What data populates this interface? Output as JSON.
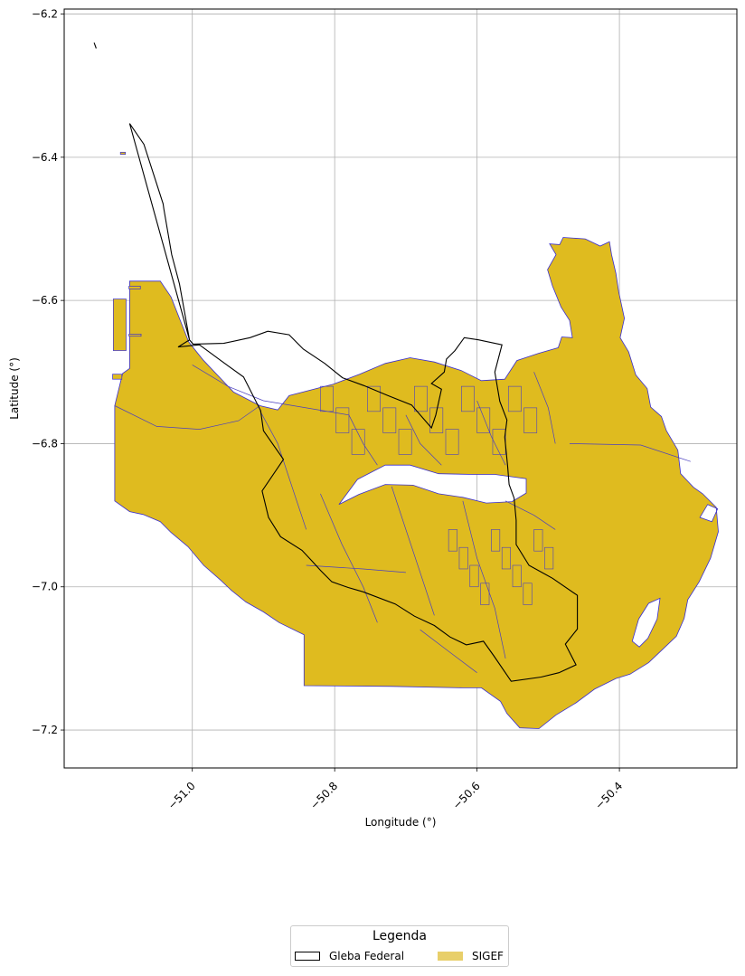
{
  "chart_data": {
    "type": "map",
    "xlabel": "Longitude (°)",
    "ylabel": "Latitude (°)",
    "xlim": [
      -51.18,
      -50.235
    ],
    "ylim": [
      -7.253,
      -6.193
    ],
    "xticks": [
      -51.0,
      -50.8,
      -50.6,
      -50.4
    ],
    "xtick_labels": [
      "−51.0",
      "−50.8",
      "−50.6",
      "−50.4"
    ],
    "yticks": [
      -6.2,
      -6.4,
      -6.6,
      -6.8,
      -7.0,
      -7.2
    ],
    "ytick_labels": [
      "−6.2",
      "−6.4",
      "−6.6",
      "−6.8",
      "−7.0",
      "−7.2"
    ],
    "grid": true,
    "legend": {
      "title": "Legenda",
      "placement": "bottom-center",
      "entries": [
        {
          "name": "Gleba Federal",
          "style": "outline",
          "color": "#000000"
        },
        {
          "name": "SIGEF",
          "style": "fill",
          "color": "#dfbb1f"
        }
      ]
    },
    "layers": {
      "sigef": {
        "fill": "#dfbb1f",
        "edge": "#3a2fcf",
        "outline": [
          [
            -51.109,
            -6.747
          ],
          [
            -51.098,
            -6.702
          ],
          [
            -51.088,
            -6.695
          ],
          [
            -51.088,
            -6.573
          ],
          [
            -51.045,
            -6.573
          ],
          [
            -51.03,
            -6.595
          ],
          [
            -51.005,
            -6.658
          ],
          [
            -50.985,
            -6.683
          ],
          [
            -50.942,
            -6.728
          ],
          [
            -50.905,
            -6.747
          ],
          [
            -50.88,
            -6.753
          ],
          [
            -50.864,
            -6.733
          ],
          [
            -50.829,
            -6.724
          ],
          [
            -50.802,
            -6.717
          ],
          [
            -50.765,
            -6.703
          ],
          [
            -50.729,
            -6.688
          ],
          [
            -50.694,
            -6.68
          ],
          [
            -50.66,
            -6.686
          ],
          [
            -50.622,
            -6.698
          ],
          [
            -50.594,
            -6.712
          ],
          [
            -50.561,
            -6.71
          ],
          [
            -50.544,
            -6.684
          ],
          [
            -50.514,
            -6.674
          ],
          [
            -50.486,
            -6.666
          ],
          [
            -50.481,
            -6.651
          ],
          [
            -50.466,
            -6.652
          ],
          [
            -50.47,
            -6.628
          ],
          [
            -50.482,
            -6.609
          ],
          [
            -50.494,
            -6.58
          ],
          [
            -50.501,
            -6.557
          ],
          [
            -50.489,
            -6.536
          ],
          [
            -50.498,
            -6.521
          ],
          [
            -50.484,
            -6.522
          ],
          [
            -50.479,
            -6.512
          ],
          [
            -50.448,
            -6.514
          ],
          [
            -50.427,
            -6.524
          ],
          [
            -50.414,
            -6.518
          ],
          [
            -50.411,
            -6.536
          ],
          [
            -50.405,
            -6.562
          ],
          [
            -50.401,
            -6.588
          ],
          [
            -50.393,
            -6.625
          ],
          [
            -50.399,
            -6.652
          ],
          [
            -50.387,
            -6.672
          ],
          [
            -50.377,
            -6.704
          ],
          [
            -50.361,
            -6.723
          ],
          [
            -50.356,
            -6.749
          ],
          [
            -50.341,
            -6.762
          ],
          [
            -50.334,
            -6.782
          ],
          [
            -50.318,
            -6.809
          ],
          [
            -50.314,
            -6.842
          ],
          [
            -50.296,
            -6.861
          ],
          [
            -50.283,
            -6.87
          ],
          [
            -50.264,
            -6.889
          ],
          [
            -50.261,
            -6.923
          ],
          [
            -50.272,
            -6.96
          ],
          [
            -50.288,
            -6.993
          ],
          [
            -50.304,
            -7.018
          ],
          [
            -50.309,
            -7.044
          ],
          [
            -50.32,
            -7.069
          ],
          [
            -50.341,
            -7.089
          ],
          [
            -50.359,
            -7.106
          ],
          [
            -50.385,
            -7.122
          ],
          [
            -50.405,
            -7.128
          ],
          [
            -50.435,
            -7.143
          ],
          [
            -50.461,
            -7.162
          ],
          [
            -50.489,
            -7.179
          ],
          [
            -50.513,
            -7.198
          ],
          [
            -50.54,
            -7.197
          ],
          [
            -50.558,
            -7.177
          ],
          [
            -50.567,
            -7.16
          ],
          [
            -50.594,
            -7.141
          ],
          [
            -50.62,
            -7.141
          ],
          [
            -50.72,
            -7.139
          ],
          [
            -50.843,
            -7.138
          ],
          [
            -50.843,
            -7.067
          ],
          [
            -50.878,
            -7.05
          ],
          [
            -50.9,
            -7.035
          ],
          [
            -50.925,
            -7.021
          ],
          [
            -50.945,
            -7.005
          ],
          [
            -50.961,
            -6.99
          ],
          [
            -50.984,
            -6.97
          ],
          [
            -51.006,
            -6.944
          ],
          [
            -51.03,
            -6.924
          ],
          [
            -51.045,
            -6.909
          ],
          [
            -51.069,
            -6.899
          ],
          [
            -51.088,
            -6.895
          ],
          [
            -51.109,
            -6.88
          ]
        ],
        "hole_outline": [
          [
            -50.794,
            -6.885
          ],
          [
            -50.768,
            -6.85
          ],
          [
            -50.729,
            -6.83
          ],
          [
            -50.694,
            -6.83
          ],
          [
            -50.654,
            -6.842
          ],
          [
            -50.606,
            -6.843
          ],
          [
            -50.575,
            -6.843
          ],
          [
            -50.531,
            -6.849
          ],
          [
            -50.531,
            -6.869
          ],
          [
            -50.551,
            -6.881
          ],
          [
            -50.587,
            -6.883
          ],
          [
            -50.62,
            -6.875
          ],
          [
            -50.654,
            -6.87
          ],
          [
            -50.69,
            -6.858
          ],
          [
            -50.729,
            -6.857
          ],
          [
            -50.766,
            -6.871
          ]
        ],
        "hole_east": [
          [
            -50.276,
            -6.885
          ],
          [
            -50.262,
            -6.891
          ],
          [
            -50.27,
            -6.909
          ],
          [
            -50.287,
            -6.903
          ]
        ],
        "hole_east2": [
          [
            -50.373,
            -7.045
          ],
          [
            -50.359,
            -7.023
          ],
          [
            -50.343,
            -7.016
          ],
          [
            -50.347,
            -7.045
          ],
          [
            -50.36,
            -7.072
          ],
          [
            -50.372,
            -7.084
          ],
          [
            -50.382,
            -7.076
          ]
        ]
      },
      "gleba": {
        "edge": "#000000",
        "outline": [
          [
            -51.088,
            -6.353
          ],
          [
            -51.068,
            -6.382
          ],
          [
            -51.041,
            -6.465
          ],
          [
            -51.04,
            -6.472
          ],
          [
            -51.029,
            -6.536
          ],
          [
            -51.018,
            -6.577
          ],
          [
            -51.01,
            -6.621
          ],
          [
            -51.004,
            -6.655
          ],
          [
            -51.02,
            -6.665
          ],
          [
            -50.99,
            -6.662
          ],
          [
            -50.96,
            -6.684
          ],
          [
            -50.928,
            -6.707
          ],
          [
            -50.904,
            -6.754
          ],
          [
            -50.9,
            -6.782
          ],
          [
            -50.872,
            -6.822
          ],
          [
            -50.902,
            -6.866
          ],
          [
            -50.893,
            -6.903
          ],
          [
            -50.876,
            -6.93
          ],
          [
            -50.846,
            -6.949
          ],
          [
            -50.831,
            -6.965
          ],
          [
            -50.82,
            -6.977
          ],
          [
            -50.804,
            -6.993
          ],
          [
            -50.781,
            -7.001
          ],
          [
            -50.76,
            -7.007
          ],
          [
            -50.715,
            -7.024
          ],
          [
            -50.688,
            -7.041
          ],
          [
            -50.66,
            -7.054
          ],
          [
            -50.638,
            -7.07
          ],
          [
            -50.615,
            -7.081
          ],
          [
            -50.591,
            -7.076
          ],
          [
            -50.576,
            -7.097
          ],
          [
            -50.552,
            -7.132
          ],
          [
            -50.51,
            -7.126
          ],
          [
            -50.485,
            -7.12
          ],
          [
            -50.461,
            -7.109
          ],
          [
            -50.476,
            -7.08
          ],
          [
            -50.459,
            -7.059
          ],
          [
            -50.459,
            -7.012
          ],
          [
            -50.494,
            -6.988
          ],
          [
            -50.527,
            -6.97
          ],
          [
            -50.545,
            -6.941
          ],
          [
            -50.545,
            -6.907
          ],
          [
            -50.548,
            -6.876
          ],
          [
            -50.555,
            -6.857
          ],
          [
            -50.557,
            -6.832
          ],
          [
            -50.561,
            -6.791
          ],
          [
            -50.558,
            -6.767
          ],
          [
            -50.568,
            -6.741
          ],
          [
            -50.575,
            -6.7
          ],
          [
            -50.565,
            -6.662
          ],
          [
            -50.598,
            -6.655
          ],
          [
            -50.618,
            -6.652
          ],
          [
            -50.631,
            -6.67
          ],
          [
            -50.643,
            -6.682
          ],
          [
            -50.646,
            -6.7
          ],
          [
            -50.664,
            -6.716
          ],
          [
            -50.65,
            -6.724
          ],
          [
            -50.658,
            -6.76
          ],
          [
            -50.664,
            -6.778
          ],
          [
            -50.692,
            -6.746
          ],
          [
            -50.725,
            -6.733
          ],
          [
            -50.759,
            -6.719
          ],
          [
            -50.789,
            -6.708
          ],
          [
            -50.814,
            -6.688
          ],
          [
            -50.844,
            -6.668
          ],
          [
            -50.864,
            -6.648
          ],
          [
            -50.894,
            -6.643
          ],
          [
            -50.919,
            -6.652
          ],
          [
            -50.956,
            -6.66
          ],
          [
            -50.999,
            -6.661
          ],
          [
            -51.004,
            -6.655
          ]
        ],
        "fragment": [
          [
            -51.138,
            -6.24
          ],
          [
            -51.135,
            -6.248
          ]
        ]
      }
    }
  }
}
